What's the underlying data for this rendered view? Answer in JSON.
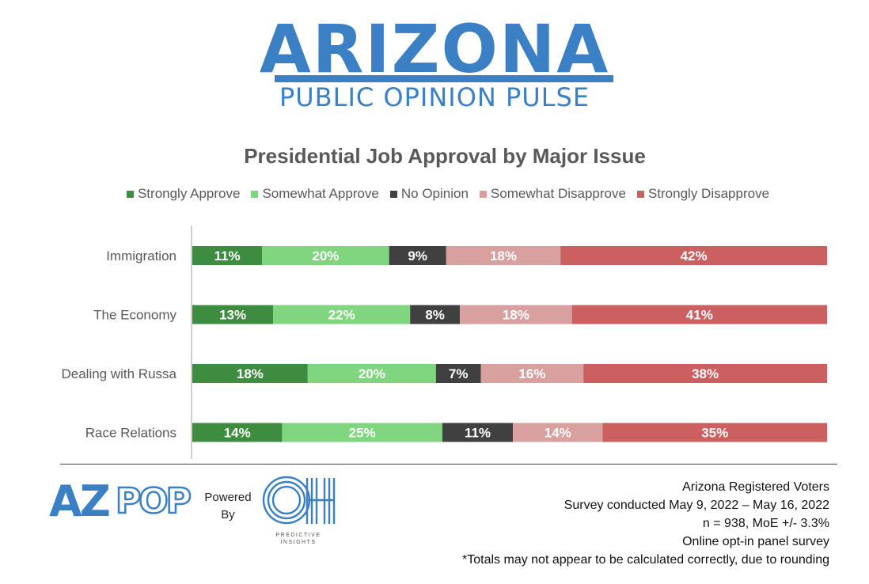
{
  "header": {
    "logo_word": "ARIZONA",
    "logo_subtitle": "PUBLIC OPINION PULSE",
    "logo_color": "#3b7fc4"
  },
  "chart_data": {
    "type": "bar",
    "orientation": "horizontal",
    "stacked": true,
    "title": "Presidential Job Approval by Major Issue",
    "xlabel": "",
    "ylabel": "",
    "categories": [
      "Immigration",
      "The Economy",
      "Dealing with Russa",
      "Race Relations"
    ],
    "series": [
      {
        "name": "Strongly Approve",
        "color": "#3d8c40",
        "values": [
          11,
          13,
          18,
          14
        ]
      },
      {
        "name": "Somewhat Approve",
        "color": "#7fd67f",
        "values": [
          20,
          22,
          20,
          25
        ]
      },
      {
        "name": "No Opinion",
        "color": "#404040",
        "values": [
          9,
          8,
          7,
          11
        ]
      },
      {
        "name": "Somewhat Disapprove",
        "color": "#d9a0a0",
        "values": [
          18,
          18,
          16,
          14
        ]
      },
      {
        "name": "Strongly Disapprove",
        "color": "#cc5f5f",
        "values": [
          42,
          41,
          38,
          35
        ]
      }
    ],
    "value_suffix": "%",
    "legend_position": "top",
    "grid": false
  },
  "footer": {
    "azpop_logo": {
      "az": "AZ",
      "pop": "POP"
    },
    "powered_by": [
      "Powered",
      "By"
    ],
    "oh_logo": {
      "letters": "OH",
      "caption": [
        "PREDICTIVE",
        "INSIGHTS"
      ]
    },
    "notes": [
      "Arizona Registered Voters",
      "Survey conducted May 9, 2022 – May 16, 2022",
      "n = 938, MoE +/- 3.3%",
      "Online opt-in panel survey",
      "*Totals may not appear to be calculated correctly, due to rounding"
    ]
  }
}
